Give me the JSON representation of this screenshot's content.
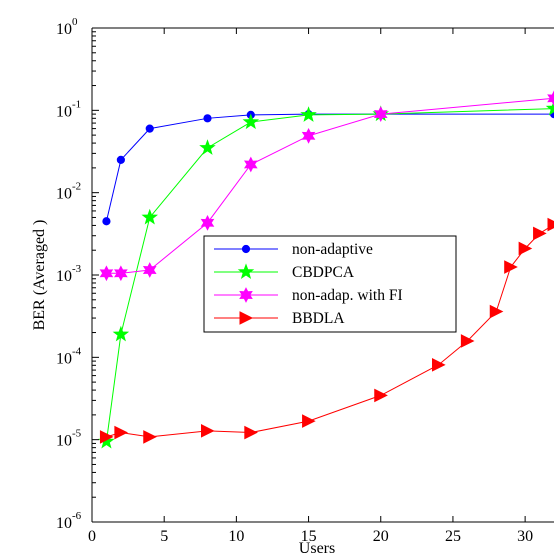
{
  "chart_data": {
    "type": "line",
    "title": "",
    "xlabel": "Users",
    "ylabel": "BER (Averaged )",
    "xlim": [
      0,
      32
    ],
    "ylim": [
      1e-06,
      1
    ],
    "yscale": "log",
    "grid": false,
    "legend_position": "center-right",
    "x_ticks": [
      0,
      5,
      10,
      15,
      20,
      25,
      30
    ],
    "x_tick_labels": [
      "0",
      "5",
      "10",
      "15",
      "20",
      "25",
      "30"
    ],
    "y_ticks": [
      1e-06,
      1e-05,
      0.0001,
      0.001,
      0.01,
      0.1,
      1
    ],
    "y_tick_labels": [
      {
        "base": "10",
        "exp": "-6"
      },
      {
        "base": "10",
        "exp": "-5"
      },
      {
        "base": "10",
        "exp": "-4"
      },
      {
        "base": "10",
        "exp": "-3"
      },
      {
        "base": "10",
        "exp": "-2"
      },
      {
        "base": "10",
        "exp": "-1"
      },
      {
        "base": "10",
        "exp": "0"
      }
    ],
    "series": [
      {
        "name": "non-adaptive",
        "color": "#0000ff",
        "marker": "circle",
        "x": [
          1,
          2,
          4,
          8,
          11,
          15,
          20,
          32
        ],
        "y": [
          0.0045,
          0.025,
          0.06,
          0.08,
          0.088,
          0.09,
          0.09,
          0.09
        ]
      },
      {
        "name": "CBDPCA",
        "color": "#00ff00",
        "marker": "star5",
        "x": [
          1,
          2,
          4,
          8,
          11,
          15,
          20,
          32
        ],
        "y": [
          9.5e-06,
          0.00019,
          0.005,
          0.035,
          0.072,
          0.088,
          0.09,
          0.105
        ]
      },
      {
        "name": "non-adap. with FI",
        "color": "#ff00ff",
        "marker": "star6",
        "x": [
          1,
          2,
          4,
          8,
          11,
          15,
          20,
          32
        ],
        "y": [
          0.00105,
          0.00105,
          0.00115,
          0.0043,
          0.022,
          0.049,
          0.09,
          0.14
        ]
      },
      {
        "name": "BBDLA",
        "color": "#ff0000",
        "marker": "triangle-right",
        "x": [
          1,
          2,
          4,
          8,
          11,
          15,
          20,
          24,
          26,
          28,
          29,
          30,
          31,
          32
        ],
        "y": [
          1.08e-05,
          1.22e-05,
          1.08e-05,
          1.28e-05,
          1.22e-05,
          1.68e-05,
          3.45e-05,
          8.1e-05,
          0.000158,
          0.00036,
          0.00125,
          0.0021,
          0.0032,
          0.0041
        ]
      }
    ]
  }
}
